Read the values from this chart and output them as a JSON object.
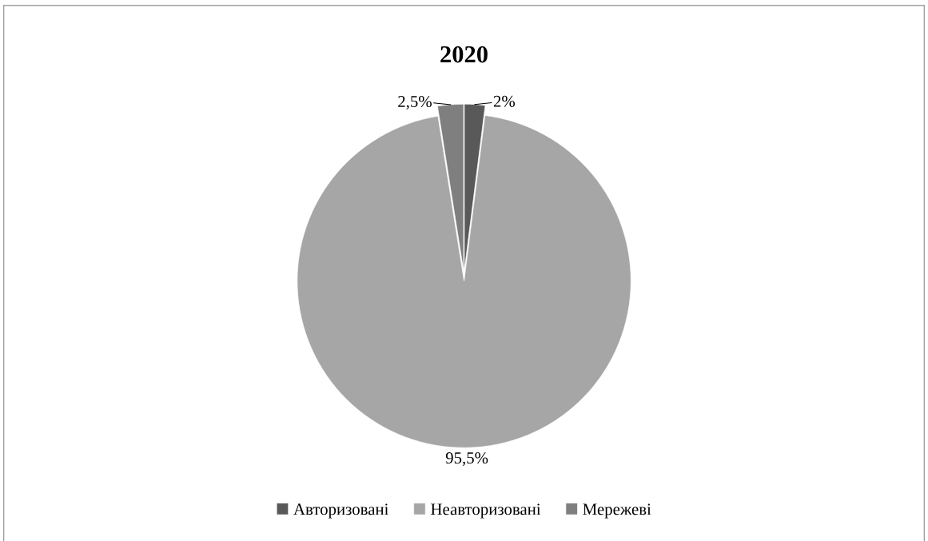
{
  "chart_data": {
    "type": "pie",
    "title": "2020",
    "categories": [
      "Авторизовані",
      "Неавторизовані",
      "Мережеві"
    ],
    "values": [
      2,
      95.5,
      2.5
    ],
    "value_labels": [
      "2%",
      "95,5%",
      "2,5%"
    ],
    "colors": [
      "#595959",
      "#a6a6a6",
      "#7f7f7f"
    ],
    "legend": "bottom"
  }
}
